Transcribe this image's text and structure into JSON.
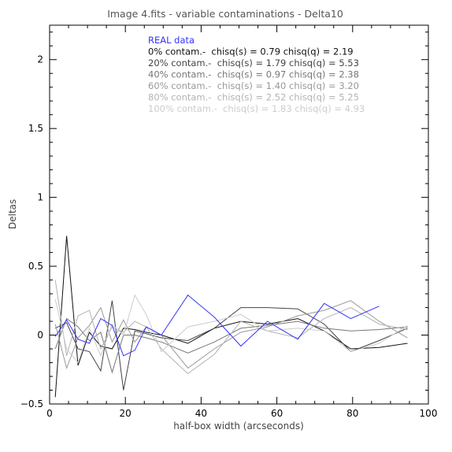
{
  "chart_data": {
    "type": "line",
    "title": "Image 4.fits  -  variable contaminations  -  Delta10",
    "xlabel": "half-box width (arcseconds)",
    "ylabel": "Deltas",
    "xlim": [
      0,
      100
    ],
    "ylim": [
      -0.5,
      2.25
    ],
    "xticks": [
      0,
      20,
      40,
      60,
      80,
      100
    ],
    "yticks": [
      -0.5,
      0,
      0.5,
      1,
      1.5,
      2
    ],
    "xtick_labels": [
      "0",
      "20",
      "40",
      "60",
      "80",
      "100"
    ],
    "ytick_labels": [
      "−0.5",
      "0",
      "0.5",
      "1",
      "1.5",
      "2"
    ],
    "legend_position": "top-center inside axes",
    "series": [
      {
        "name": "REAL data",
        "color": "#3333ff",
        "x": [
          1.5,
          4.5,
          7.5,
          10.5,
          13.5,
          16.5,
          19.5,
          22.5,
          25.5,
          29.5,
          36.5,
          43.5,
          50.5,
          57.5,
          65.5,
          72.5,
          79.5,
          87
        ],
        "y": [
          -0.01,
          0.11,
          -0.03,
          -0.06,
          0.12,
          0.07,
          -0.15,
          -0.11,
          0.06,
          0.0,
          0.29,
          0.13,
          -0.08,
          0.1,
          -0.03,
          0.23,
          0.12,
          0.21
        ]
      },
      {
        "name": "0% contam.-  chisq(s) = 0.79 chisq(q) = 2.19",
        "color": "#111111",
        "x": [
          1.5,
          4.5,
          7.5,
          10.5,
          13.5,
          16.5,
          19.5,
          22.5,
          25.5,
          29.5,
          36.5,
          43.5,
          50.5,
          57.5,
          65.5,
          72.5,
          79.5,
          87,
          94.5
        ],
        "y": [
          -0.45,
          0.72,
          -0.22,
          0.02,
          -0.08,
          -0.1,
          0.05,
          0.04,
          0.02,
          0.0,
          -0.06,
          0.05,
          0.1,
          0.08,
          0.12,
          0.03,
          -0.1,
          -0.09,
          -0.06
        ]
      },
      {
        "name": "20% contam.-  chisq(s) = 1.79 chisq(q) = 5.53",
        "color": "#444444",
        "x": [
          1.5,
          4.5,
          7.5,
          10.5,
          13.5,
          16.5,
          19.5,
          22.5,
          25.5,
          29.5,
          36.5,
          43.5,
          50.5,
          57.5,
          65.5,
          72.5,
          79.5,
          87,
          94.5
        ],
        "y": [
          0.05,
          0.09,
          -0.1,
          -0.12,
          -0.26,
          0.25,
          -0.4,
          0.03,
          0.01,
          -0.02,
          -0.04,
          0.05,
          0.2,
          0.2,
          0.19,
          0.08,
          -0.12,
          -0.04,
          0.05
        ]
      },
      {
        "name": "40% contam.-  chisq(s) = 0.97 chisq(q) = 2.38",
        "color": "#777777",
        "x": [
          1.5,
          4.5,
          7.5,
          10.5,
          13.5,
          16.5,
          19.5,
          22.5,
          25.5,
          29.5,
          36.5,
          43.5,
          50.5,
          57.5,
          65.5,
          72.5,
          79.5,
          87,
          94.5
        ],
        "y": [
          -0.1,
          0.12,
          0.06,
          -0.04,
          0.02,
          -0.27,
          0.0,
          0.0,
          -0.02,
          -0.05,
          -0.13,
          -0.05,
          0.05,
          0.07,
          0.1,
          0.05,
          0.03,
          0.04,
          0.06
        ]
      },
      {
        "name": "60% contam.-  chisq(s) = 1.40 chisq(q) = 3.20",
        "color": "#999999",
        "x": [
          1.5,
          4.5,
          7.5,
          10.5,
          13.5,
          16.5,
          19.5,
          22.5,
          25.5,
          29.5,
          36.5,
          43.5,
          50.5,
          57.5,
          65.5,
          72.5,
          79.5,
          87,
          94.5
        ],
        "y": [
          0.08,
          -0.24,
          -0.02,
          0.07,
          0.2,
          -0.05,
          0.11,
          -0.05,
          0.06,
          0.0,
          -0.24,
          -0.1,
          0.02,
          0.06,
          0.14,
          0.18,
          0.25,
          0.1,
          -0.02
        ]
      },
      {
        "name": "80% contam.-  chisq(s) = 2.52 chisq(q) = 5.25",
        "color": "#b3b3b3",
        "x": [
          1.5,
          4.5,
          7.5,
          10.5,
          13.5,
          16.5,
          19.5,
          22.5,
          25.5,
          29.5,
          36.5,
          43.5,
          50.5,
          57.5,
          65.5,
          72.5,
          79.5,
          87,
          94.5
        ],
        "y": [
          0.4,
          -0.15,
          0.14,
          0.18,
          -0.1,
          0.06,
          0.02,
          0.1,
          0.06,
          -0.1,
          -0.28,
          -0.14,
          0.1,
          0.03,
          -0.02,
          0.12,
          0.2,
          0.08,
          0.04
        ]
      },
      {
        "name": "100% contam.-  chisq(s) = 1.83 chisq(q) = 4.93",
        "color": "#cccccc",
        "x": [
          1.5,
          4.5,
          7.5,
          10.5,
          13.5,
          16.5,
          19.5,
          22.5,
          25.5,
          29.5,
          36.5,
          43.5,
          50.5,
          57.5,
          65.5,
          72.5,
          79.5,
          87,
          94.5
        ],
        "y": [
          0.26,
          -0.1,
          -0.2,
          0.05,
          -0.15,
          0.08,
          0.0,
          0.29,
          0.15,
          -0.12,
          0.06,
          0.1,
          0.15,
          0.03,
          0.05,
          0.03,
          -0.12,
          -0.06,
          0.07
        ]
      }
    ]
  }
}
